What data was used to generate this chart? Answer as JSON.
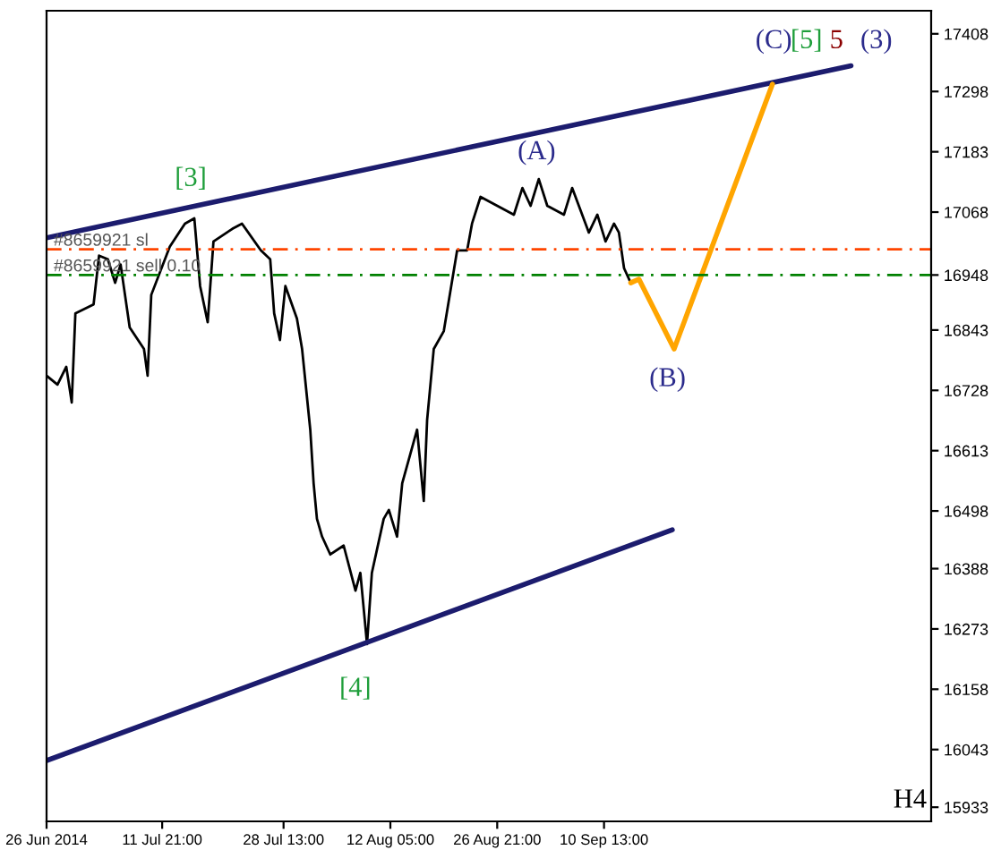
{
  "chart_data": {
    "type": "line",
    "xlim": [
      "2014-06-26T00:00",
      "2014-10-25T11:00"
    ],
    "ylim": [
      15906,
      17452
    ],
    "xticks": [
      {
        "value": "2014-06-26T00:00",
        "label": "26 Jun 2014"
      },
      {
        "value": "2014-07-11T21:00",
        "label": "11 Jul 21:00"
      },
      {
        "value": "2014-07-28T13:00",
        "label": "28 Jul 13:00"
      },
      {
        "value": "2014-08-12T05:00",
        "label": "12 Aug 05:00"
      },
      {
        "value": "2014-08-26T21:00",
        "label": "26 Aug 21:00"
      },
      {
        "value": "2014-09-10T13:00",
        "label": "10 Sep 13:00"
      }
    ],
    "yticks": [
      15933,
      16043,
      16158,
      16273,
      16388,
      16498,
      16613,
      16728,
      16843,
      16948,
      17068,
      17183,
      17298,
      17408
    ],
    "grid": false,
    "legend": false,
    "series": [
      {
        "color": "#000000",
        "x": [
          "2014-06-26T00:00",
          "2014-06-27T12:00",
          "2014-06-28T17:00",
          "2014-06-29T11:00",
          "2014-06-29T23:00",
          "2014-07-02T11:00",
          "2014-07-03T05:00",
          "2014-07-04T10:00",
          "2014-07-05T10:00",
          "2014-07-06T04:00",
          "2014-07-07T10:00",
          "2014-07-09T09:00",
          "2014-07-09T21:00",
          "2014-07-10T09:00",
          "2014-07-12T22:00",
          "2014-07-15T00:00",
          "2014-07-16T07:00",
          "2014-07-17T02:00",
          "2014-07-18T03:00",
          "2014-07-18T22:00",
          "2014-07-21T12:00",
          "2014-07-22T20:00",
          "2014-07-25T10:00",
          "2014-07-26T17:00",
          "2014-07-27T06:00",
          "2014-07-28T01:00",
          "2014-07-28T19:00",
          "2014-07-30T09:00",
          "2014-07-31T02:00",
          "2014-08-01T05:00",
          "2014-08-01T16:00",
          "2014-08-02T03:00",
          "2014-08-02T20:00",
          "2014-08-03T23:00",
          "2014-08-05T19:00",
          "2014-08-07T10:00",
          "2014-08-08T02:00",
          "2014-08-09T00:00",
          "2014-08-09T16:00",
          "2014-08-11T07:00",
          "2014-08-12T00:00",
          "2014-08-13T03:00",
          "2014-08-13T20:00",
          "2014-08-15T21:00",
          "2014-08-16T19:00",
          "2014-08-17T06:00",
          "2014-08-18T04:00",
          "2014-08-19T13:00",
          "2014-08-21T09:00",
          "2014-08-22T18:00",
          "2014-08-23T10:00",
          "2014-08-24T14:00",
          "2014-08-26T21:00",
          "2014-08-29T04:00",
          "2014-08-30T08:00",
          "2014-08-31T11:00",
          "2014-09-01T14:00",
          "2014-09-02T18:00",
          "2014-09-05T01:00",
          "2014-09-06T04:00",
          "2014-09-08T11:00",
          "2014-09-09T15:00",
          "2014-09-10T18:00",
          "2014-09-11T22:00",
          "2014-09-12T14:00",
          "2014-09-13T07:00",
          "2014-09-14T05:00"
        ],
        "values": [
          16756,
          16739,
          16773,
          16705,
          16875,
          16892,
          16985,
          16978,
          16933,
          16968,
          16848,
          16807,
          16756,
          16910,
          17002,
          17046,
          17056,
          16927,
          16858,
          17012,
          17036,
          17046,
          16995,
          16978,
          16875,
          16824,
          16927,
          16865,
          16807,
          16653,
          16551,
          16483,
          16449,
          16415,
          16432,
          16346,
          16380,
          16244,
          16380,
          16483,
          16500,
          16449,
          16551,
          16653,
          16517,
          16671,
          16807,
          16841,
          16995,
          16995,
          17046,
          17097,
          17080,
          17063,
          17114,
          17080,
          17131,
          17080,
          17063,
          17114,
          17029,
          17063,
          17012,
          17046,
          17029,
          16961,
          16933
        ]
      },
      {
        "color": "#1c1c6e",
        "x": [
          "2014-06-26T00:00",
          "2014-10-14T11:00"
        ],
        "values": [
          17019,
          17347
        ]
      },
      {
        "color": "#1c1c6e",
        "x": [
          "2014-06-26T00:00",
          "2014-09-19T22:00"
        ],
        "values": [
          16022,
          16462
        ]
      },
      {
        "color": "#ffa500",
        "x": [
          "2014-09-14T05:00",
          "2014-09-15T08:00",
          "2014-09-20T04:00",
          "2014-10-03T16:00"
        ],
        "values": [
          16933,
          16940,
          16807,
          17312
        ]
      }
    ],
    "ref_lines": [
      {
        "axis": "y",
        "value": 16997,
        "label": "#8659921 sl",
        "color": "#ff4500",
        "line_style": "dashdot"
      },
      {
        "axis": "y",
        "value": 16948,
        "label": "#8659921 sell 0.10",
        "color": "#008000",
        "line_style": "dashdot"
      }
    ],
    "annotations": [
      "[3]",
      "[4]",
      "(A)",
      "(B)",
      "(C)",
      "[5]",
      "5",
      "(3)",
      "H4"
    ]
  }
}
